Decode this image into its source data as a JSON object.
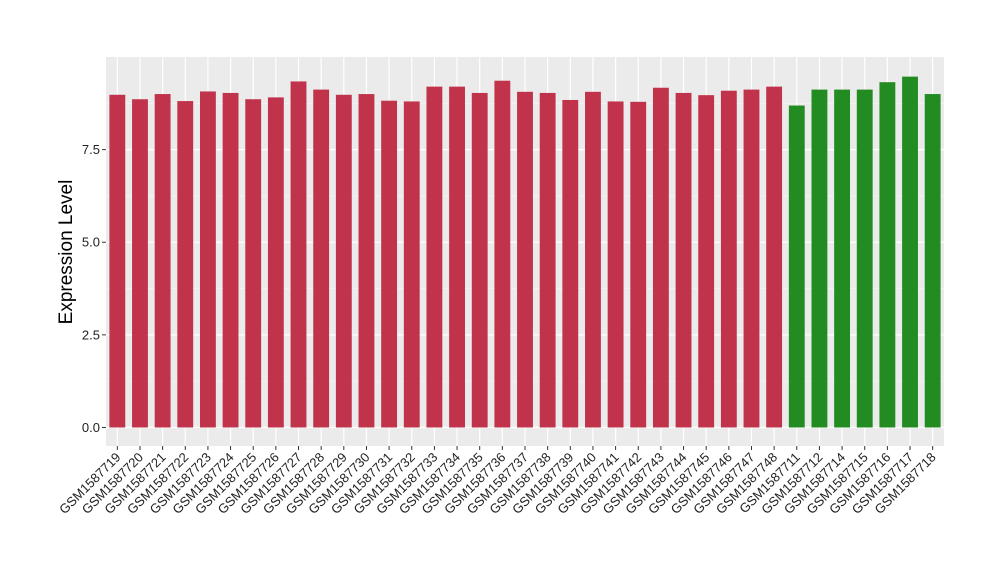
{
  "chart_data": {
    "type": "bar",
    "title": "",
    "xlabel": "",
    "ylabel": "Expression Level",
    "ylim": [
      -0.5,
      10.0
    ],
    "yticks": [
      0.0,
      2.5,
      5.0,
      7.5
    ],
    "ytick_labels": [
      "0.0",
      "2.5",
      "5.0",
      "7.5"
    ],
    "grid": true,
    "legend": "none",
    "colors": {
      "panel_background": "#ebebeb",
      "grid_major": "#ffffff",
      "group_1": "#c0334a",
      "group_2": "#228b22"
    },
    "categories": [
      "GSM1587719",
      "GSM1587720",
      "GSM1587721",
      "GSM1587722",
      "GSM1587723",
      "GSM1587724",
      "GSM1587725",
      "GSM1587726",
      "GSM1587727",
      "GSM1587728",
      "GSM1587729",
      "GSM1587730",
      "GSM1587731",
      "GSM1587732",
      "GSM1587733",
      "GSM1587734",
      "GSM1587735",
      "GSM1587736",
      "GSM1587737",
      "GSM1587738",
      "GSM1587739",
      "GSM1587740",
      "GSM1587741",
      "GSM1587742",
      "GSM1587743",
      "GSM1587744",
      "GSM1587745",
      "GSM1587746",
      "GSM1587747",
      "GSM1587748",
      "GSM1587711",
      "GSM1587712",
      "GSM1587714",
      "GSM1587715",
      "GSM1587716",
      "GSM1587717",
      "GSM1587718"
    ],
    "values": [
      8.98,
      8.86,
      9.0,
      8.81,
      9.07,
      9.03,
      8.86,
      8.91,
      9.34,
      9.12,
      8.98,
      9.0,
      8.82,
      8.8,
      9.2,
      9.2,
      9.03,
      9.36,
      9.06,
      9.03,
      8.84,
      9.06,
      8.8,
      8.79,
      9.17,
      9.03,
      8.97,
      9.09,
      9.12,
      9.2,
      8.69,
      9.12,
      9.12,
      9.12,
      9.32,
      9.47,
      9.0
    ],
    "bar_groups": [
      "group_1",
      "group_1",
      "group_1",
      "group_1",
      "group_1",
      "group_1",
      "group_1",
      "group_1",
      "group_1",
      "group_1",
      "group_1",
      "group_1",
      "group_1",
      "group_1",
      "group_1",
      "group_1",
      "group_1",
      "group_1",
      "group_1",
      "group_1",
      "group_1",
      "group_1",
      "group_1",
      "group_1",
      "group_1",
      "group_1",
      "group_1",
      "group_1",
      "group_1",
      "group_1",
      "group_2",
      "group_2",
      "group_2",
      "group_2",
      "group_2",
      "group_2",
      "group_2"
    ]
  }
}
